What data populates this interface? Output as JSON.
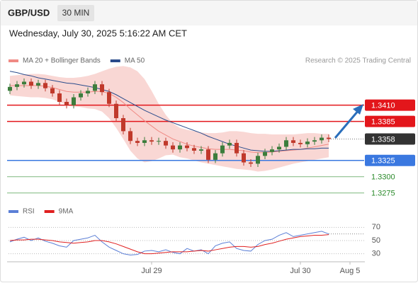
{
  "header": {
    "symbol": "GBP/USD",
    "timeframe": "30 MIN",
    "timestamp": "Wednesday, July 30, 2025 5:16:22 AM CET"
  },
  "chart_data": [
    {
      "type": "candlestick",
      "annotation": "Research © 2025 Trading Central",
      "ylim": [
        1.3265,
        1.3465
      ],
      "candles": {
        "up_color": "#3c7d3c",
        "down_color": "#c0392b",
        "open": [
          1.3432,
          1.3438,
          1.3442,
          1.3446,
          1.344,
          1.3444,
          1.3436,
          1.3428,
          1.3415,
          1.341,
          1.3422,
          1.3428,
          1.3432,
          1.3442,
          1.343,
          1.3412,
          1.339,
          1.337,
          1.3355,
          1.3352,
          1.3356,
          1.3354,
          1.3355,
          1.3348,
          1.3342,
          1.3348,
          1.3344,
          1.334,
          1.3342,
          1.3326,
          1.3336,
          1.3348,
          1.3352,
          1.3336,
          1.3322,
          1.332,
          1.3332,
          1.3338,
          1.3342,
          1.3346,
          1.3356,
          1.3352,
          1.335,
          1.3354,
          1.3356,
          1.336
        ],
        "high": [
          1.3443,
          1.3447,
          1.3451,
          1.3451,
          1.3449,
          1.3449,
          1.3441,
          1.3433,
          1.342,
          1.3427,
          1.3433,
          1.3437,
          1.3447,
          1.3447,
          1.3435,
          1.3417,
          1.3395,
          1.3375,
          1.336,
          1.3361,
          1.3361,
          1.336,
          1.336,
          1.3353,
          1.3353,
          1.3353,
          1.3349,
          1.3347,
          1.3347,
          1.3341,
          1.3353,
          1.3357,
          1.3357,
          1.3341,
          1.3327,
          1.3337,
          1.3343,
          1.3347,
          1.3351,
          1.3361,
          1.3361,
          1.3357,
          1.3359,
          1.3361,
          1.3365,
          1.3365
        ],
        "low": [
          1.3427,
          1.3433,
          1.3437,
          1.3435,
          1.3435,
          1.3431,
          1.3423,
          1.341,
          1.3405,
          1.3405,
          1.3417,
          1.3423,
          1.3427,
          1.3425,
          1.3407,
          1.3385,
          1.3365,
          1.335,
          1.3347,
          1.3347,
          1.3349,
          1.3349,
          1.3343,
          1.3337,
          1.3337,
          1.3339,
          1.3335,
          1.3335,
          1.3321,
          1.3321,
          1.3331,
          1.3343,
          1.3331,
          1.3317,
          1.3315,
          1.3315,
          1.3327,
          1.3333,
          1.3337,
          1.3341,
          1.3347,
          1.3345,
          1.3345,
          1.3349,
          1.3351,
          1.3353
        ],
        "close": [
          1.3438,
          1.3442,
          1.3446,
          1.344,
          1.3444,
          1.3436,
          1.3428,
          1.3415,
          1.341,
          1.3422,
          1.3428,
          1.3432,
          1.3442,
          1.343,
          1.3412,
          1.339,
          1.337,
          1.3355,
          1.3352,
          1.3356,
          1.3354,
          1.3355,
          1.3348,
          1.3342,
          1.3348,
          1.3344,
          1.334,
          1.3342,
          1.3326,
          1.3336,
          1.3348,
          1.3352,
          1.3336,
          1.3322,
          1.332,
          1.3332,
          1.3338,
          1.3342,
          1.3346,
          1.3356,
          1.3352,
          1.335,
          1.3354,
          1.3356,
          1.336,
          1.3358
        ]
      },
      "series": [
        {
          "name": "MA 20 + Bollinger Bands",
          "color": "#f08a84",
          "band_color": "#f7c9c6",
          "values": [
            1.344,
            1.344,
            1.344,
            1.344,
            1.344,
            1.3439,
            1.3437,
            1.3434,
            1.3431,
            1.343,
            1.343,
            1.343,
            1.3431,
            1.3431,
            1.3428,
            1.3422,
            1.3414,
            1.3404,
            1.3395,
            1.3386,
            1.3378,
            1.337,
            1.3364,
            1.3358,
            1.3354,
            1.335,
            1.3347,
            1.3345,
            1.3343,
            1.3342,
            1.3342,
            1.3342,
            1.3341,
            1.334,
            1.3338,
            1.3337,
            1.3337,
            1.3338,
            1.3339,
            1.334,
            1.3341,
            1.3342,
            1.3344,
            1.3346,
            1.3348,
            1.335
          ],
          "upper": [
            1.3455,
            1.3456,
            1.3457,
            1.3458,
            1.3458,
            1.3457,
            1.3455,
            1.3453,
            1.3452,
            1.3452,
            1.3453,
            1.3455,
            1.3458,
            1.3462,
            1.3466,
            1.3469,
            1.347,
            1.3468,
            1.3462,
            1.345,
            1.3432,
            1.3412,
            1.3395,
            1.3382,
            1.3375,
            1.3372,
            1.337,
            1.3368,
            1.3367,
            1.3367,
            1.3368,
            1.337,
            1.337,
            1.3369,
            1.3367,
            1.3366,
            1.3366,
            1.3365,
            1.3365,
            1.3365,
            1.3365,
            1.3366,
            1.3367,
            1.3367,
            1.3366,
            1.3366
          ],
          "lower": [
            1.3425,
            1.3424,
            1.3423,
            1.3422,
            1.3422,
            1.3421,
            1.3419,
            1.3415,
            1.341,
            1.3408,
            1.3407,
            1.3405,
            1.3404,
            1.34,
            1.339,
            1.3375,
            1.3358,
            1.334,
            1.3328,
            1.3322,
            1.3324,
            1.3328,
            1.3333,
            1.3334,
            1.333,
            1.3328,
            1.3325,
            1.3322,
            1.332,
            1.3318,
            1.3316,
            1.3314,
            1.3312,
            1.3311,
            1.331,
            1.3308,
            1.3309,
            1.3311,
            1.3314,
            1.3317,
            1.332,
            1.3322,
            1.3324,
            1.3326,
            1.3328,
            1.333
          ]
        },
        {
          "name": "MA 50",
          "color": "#2b4c8c",
          "values": [
            1.3462,
            1.346,
            1.3457,
            1.3455,
            1.3452,
            1.345,
            1.3448,
            1.3446,
            1.3444,
            1.3443,
            1.3441,
            1.3439,
            1.3437,
            1.3434,
            1.3431,
            1.3426,
            1.342,
            1.3414,
            1.3408,
            1.3402,
            1.3397,
            1.3392,
            1.3387,
            1.3383,
            1.3379,
            1.3375,
            1.3371,
            1.3367,
            1.3362,
            1.3358,
            1.3354,
            1.335,
            1.3347,
            1.3344,
            1.3341,
            1.334,
            1.3339,
            1.3339,
            1.334,
            1.3341,
            1.3342,
            1.3342,
            1.3343,
            1.3343,
            1.3344,
            1.3344
          ]
        }
      ],
      "levels": [
        {
          "value": 1.341,
          "label": "1.3410",
          "color": "#e3161b",
          "style": "box",
          "line_style": "solid"
        },
        {
          "value": 1.3385,
          "label": "1.3385",
          "color": "#e3161b",
          "style": "box",
          "line_style": "solid"
        },
        {
          "value": 1.3358,
          "label": "1.3358",
          "color": "#333333",
          "style": "box",
          "line_style": "dotted"
        },
        {
          "value": 1.3325,
          "label": "1.3325",
          "color": "#3a78e0",
          "style": "box",
          "line_style": "solid"
        },
        {
          "value": 1.33,
          "label": "1.3300",
          "color": "#2a8a2a",
          "style": "text",
          "line_style": "solid"
        },
        {
          "value": 1.3275,
          "label": "1.3275",
          "color": "#2a8a2a",
          "style": "text",
          "line_style": "solid"
        }
      ]
    },
    {
      "type": "line",
      "ylim": [
        20,
        80
      ],
      "yticks": [
        70,
        50,
        30
      ],
      "grid": true,
      "categories": [
        null,
        null,
        null,
        null,
        null,
        null,
        null,
        null,
        null,
        null,
        null,
        null,
        null,
        null,
        null,
        null,
        null,
        null,
        null,
        null,
        "Jul 29",
        null,
        null,
        null,
        null,
        null,
        null,
        null,
        null,
        null,
        null,
        null,
        null,
        null,
        null,
        null,
        null,
        null,
        null,
        null,
        null,
        "Jul 30",
        null,
        null,
        null,
        null,
        null,
        null,
        "Aug 5",
        null,
        null
      ],
      "series": [
        {
          "name": "RSI",
          "color": "#5b7fd6",
          "values": [
            48,
            52,
            55,
            50,
            54,
            49,
            46,
            42,
            40,
            50,
            52,
            54,
            58,
            48,
            40,
            35,
            30,
            28,
            29,
            34,
            35,
            33,
            36,
            32,
            30,
            38,
            34,
            36,
            30,
            42,
            46,
            48,
            38,
            35,
            34,
            44,
            50,
            52,
            58,
            62,
            56,
            58,
            60,
            62,
            64,
            60,
            null,
            null,
            null,
            null,
            null
          ]
        },
        {
          "name": "9MA",
          "color": "#e02020",
          "values": [
            50,
            51,
            51,
            52,
            52,
            51,
            50,
            48,
            47,
            46,
            47,
            48,
            50,
            50,
            48,
            45,
            41,
            37,
            33,
            30,
            30,
            31,
            32,
            33,
            33,
            33,
            34,
            35,
            34,
            36,
            38,
            40,
            41,
            41,
            40,
            41,
            44,
            46,
            49,
            52,
            54,
            56,
            57,
            58,
            58,
            59,
            null,
            null,
            null,
            null,
            null
          ]
        }
      ]
    }
  ]
}
